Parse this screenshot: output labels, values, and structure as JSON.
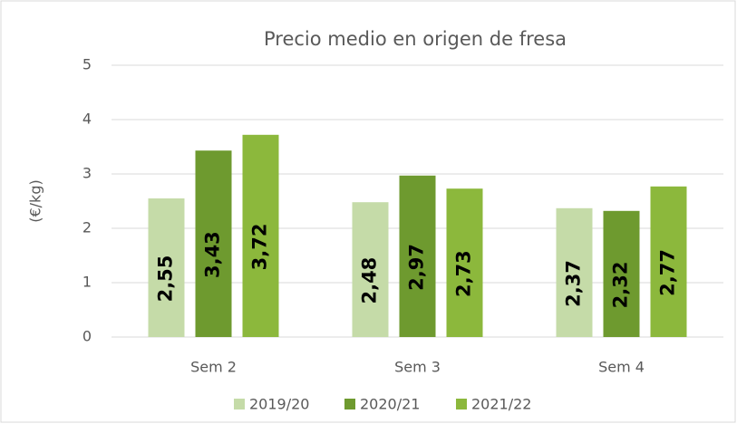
{
  "chart_data": {
    "type": "bar",
    "title": "Precio medio en origen de fresa",
    "y_label": "(€/kg)",
    "categories": [
      "Sem 2",
      "Sem 3",
      "Sem 4"
    ],
    "series": [
      {
        "name": "2019/20",
        "color": "#c5dba8",
        "values": [
          2.55,
          2.48,
          2.37
        ],
        "value_labels": [
          "2,55",
          "2,48",
          "2,37"
        ]
      },
      {
        "name": "2020/21",
        "color": "#6e9a2f",
        "values": [
          3.43,
          2.97,
          2.32
        ],
        "value_labels": [
          "3,43",
          "2,97",
          "2,32"
        ]
      },
      {
        "name": "2021/22",
        "color": "#8cb83c",
        "values": [
          3.72,
          2.73,
          2.77
        ],
        "value_labels": [
          "3,72",
          "2,73",
          "2,77"
        ]
      }
    ],
    "ylim": [
      0,
      5
    ],
    "yticks": [
      0,
      1,
      2,
      3,
      4,
      5
    ],
    "grid": true,
    "legend": "bottom"
  }
}
